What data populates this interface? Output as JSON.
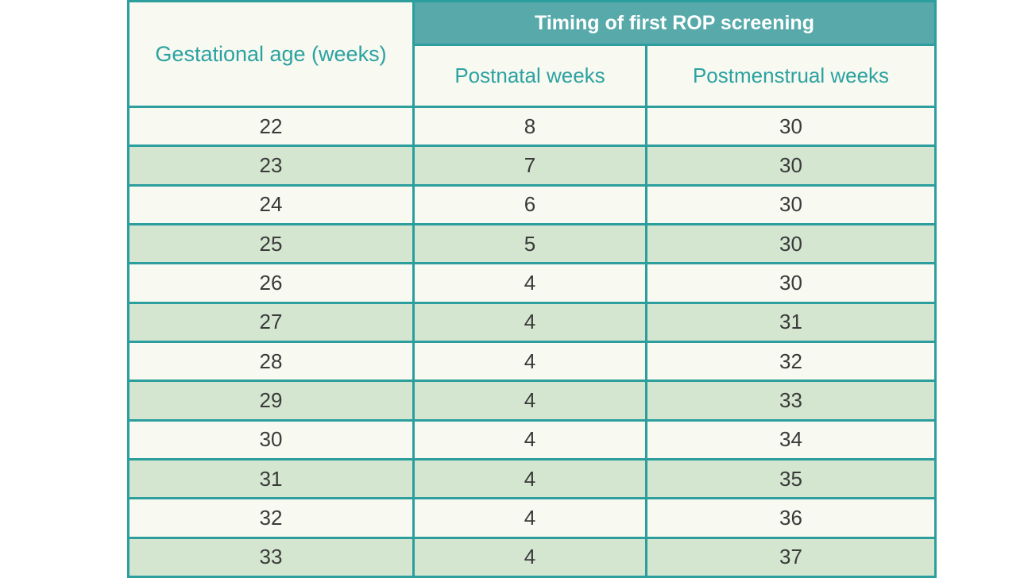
{
  "table": {
    "header": {
      "gestational_label": "Gestational age (weeks)",
      "band_label": "Timing of first ROP screening",
      "postnatal_label": "Postnatal weeks",
      "postmenstrual_label": "Postmenstrual weeks"
    },
    "rows": [
      [
        "22",
        "8",
        "30"
      ],
      [
        "23",
        "7",
        "30"
      ],
      [
        "24",
        "6",
        "30"
      ],
      [
        "25",
        "5",
        "30"
      ],
      [
        "26",
        "4",
        "30"
      ],
      [
        "27",
        "4",
        "31"
      ],
      [
        "28",
        "4",
        "32"
      ],
      [
        "29",
        "4",
        "33"
      ],
      [
        "30",
        "4",
        "34"
      ],
      [
        "31",
        "4",
        "35"
      ],
      [
        "32",
        "4",
        "36"
      ],
      [
        "33",
        "4",
        "37"
      ]
    ]
  },
  "chart_data": {
    "type": "table",
    "title": "Timing of first ROP screening",
    "columns": [
      "Gestational age (weeks)",
      "Postnatal weeks",
      "Postmenstrual weeks"
    ],
    "rows": [
      [
        22,
        8,
        30
      ],
      [
        23,
        7,
        30
      ],
      [
        24,
        6,
        30
      ],
      [
        25,
        5,
        30
      ],
      [
        26,
        4,
        30
      ],
      [
        27,
        4,
        31
      ],
      [
        28,
        4,
        32
      ],
      [
        29,
        4,
        33
      ],
      [
        30,
        4,
        34
      ],
      [
        31,
        4,
        35
      ],
      [
        32,
        4,
        36
      ],
      [
        33,
        4,
        37
      ]
    ],
    "layout": {
      "row_striping": "alternating cream/green starting cream",
      "header_band_spans": [
        "Postnatal weeks",
        "Postmenstrual weeks"
      ]
    }
  },
  "colors": {
    "border": "#2b9e9d",
    "band_fill": "#57a9aa",
    "teal_text": "#2ba2a1",
    "row_cream": "#f8f9f0",
    "row_green": "#d4e6d0",
    "body_text": "#3a3a3a",
    "band_text": "#ffffff",
    "page_background": "#ffffff"
  }
}
